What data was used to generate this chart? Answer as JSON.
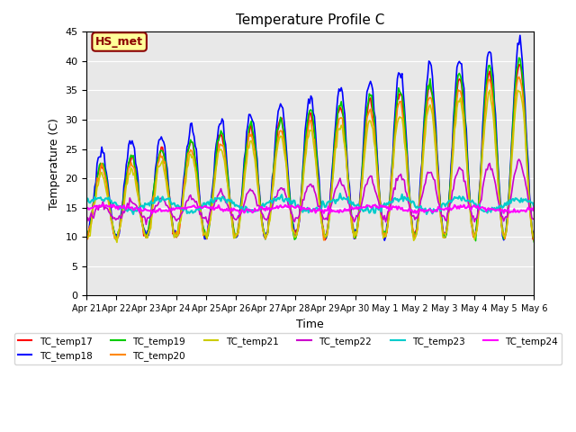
{
  "title": "Temperature Profile C",
  "xlabel": "Time",
  "ylabel": "Temperature (C)",
  "ylim": [
    0,
    45
  ],
  "background_color": "#e8e8e8",
  "annotation_text": "HS_met",
  "annotation_bg": "#ffff99",
  "annotation_border": "#8B0000",
  "series": {
    "TC_temp17": {
      "color": "#ff0000",
      "lw": 1.2
    },
    "TC_temp18": {
      "color": "#0000ff",
      "lw": 1.2
    },
    "TC_temp19": {
      "color": "#00cc00",
      "lw": 1.2
    },
    "TC_temp20": {
      "color": "#ff8800",
      "lw": 1.2
    },
    "TC_temp21": {
      "color": "#cccc00",
      "lw": 1.2
    },
    "TC_temp22": {
      "color": "#cc00cc",
      "lw": 1.2
    },
    "TC_temp23": {
      "color": "#00cccc",
      "lw": 1.5
    },
    "TC_temp24": {
      "color": "#ff00ff",
      "lw": 1.5
    }
  },
  "x_tick_labels": [
    "Apr 21",
    "Apr 22",
    "Apr 23",
    "Apr 24",
    "Apr 25",
    "Apr 26",
    "Apr 27",
    "Apr 28",
    "Apr 29",
    "Apr 30",
    "May 1",
    "May 2",
    "May 3",
    "May 4",
    "May 5",
    "May 6"
  ],
  "num_days": 16,
  "yticks": [
    0,
    5,
    10,
    15,
    20,
    25,
    30,
    35,
    40,
    45
  ]
}
